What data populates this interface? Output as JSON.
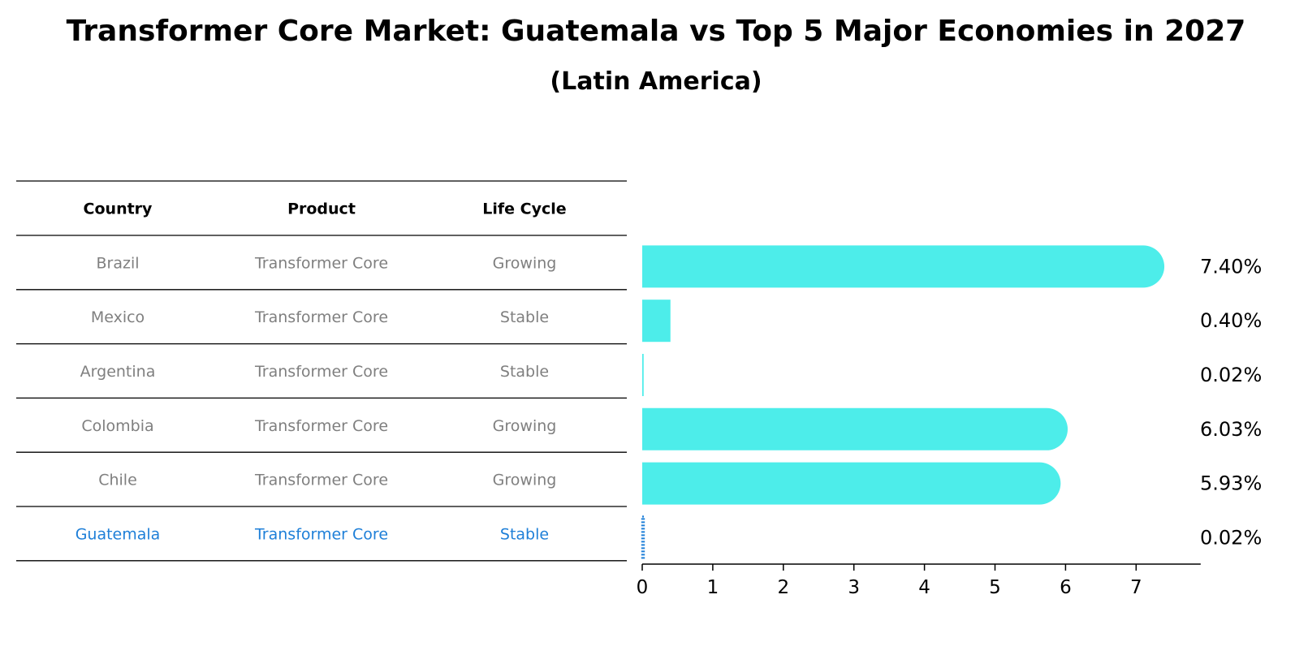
{
  "chart_data": {
    "type": "bar",
    "orientation": "horizontal",
    "title": "Transformer Core Market: Guatemala vs Top 5 Major Economies in 2027",
    "subtitle": "(Latin America)",
    "table": {
      "columns": [
        "Country",
        "Product",
        "Life Cycle"
      ],
      "rows": [
        {
          "country": "Brazil",
          "product": "Transformer Core",
          "life_cycle": "Growing",
          "highlight": false
        },
        {
          "country": "Mexico",
          "product": "Transformer Core",
          "life_cycle": "Stable",
          "highlight": false
        },
        {
          "country": "Argentina",
          "product": "Transformer Core",
          "life_cycle": "Stable",
          "highlight": false
        },
        {
          "country": "Colombia",
          "product": "Transformer Core",
          "life_cycle": "Growing",
          "highlight": false
        },
        {
          "country": "Chile",
          "product": "Transformer Core",
          "life_cycle": "Growing",
          "highlight": false
        },
        {
          "country": "Guatemala",
          "product": "Transformer Core",
          "life_cycle": "Stable",
          "highlight": true
        }
      ]
    },
    "categories": [
      "Brazil",
      "Mexico",
      "Argentina",
      "Colombia",
      "Chile",
      "Guatemala"
    ],
    "values": [
      7.4,
      0.4,
      0.02,
      6.03,
      5.93,
      0.02
    ],
    "value_labels": [
      "7.40%",
      "0.40%",
      "0.02%",
      "6.03%",
      "5.93%",
      "0.02%"
    ],
    "x_ticks": [
      0,
      1,
      2,
      3,
      4,
      5,
      6,
      7
    ],
    "xlim": [
      0,
      7.8
    ],
    "xlabel": "",
    "ylabel": "",
    "grid": false,
    "colors": {
      "bar": "#4DEDEA",
      "highlight": "#1E7FD8",
      "text_muted": "#7F7F7F",
      "text": "#000000",
      "rule": "#000000"
    }
  }
}
